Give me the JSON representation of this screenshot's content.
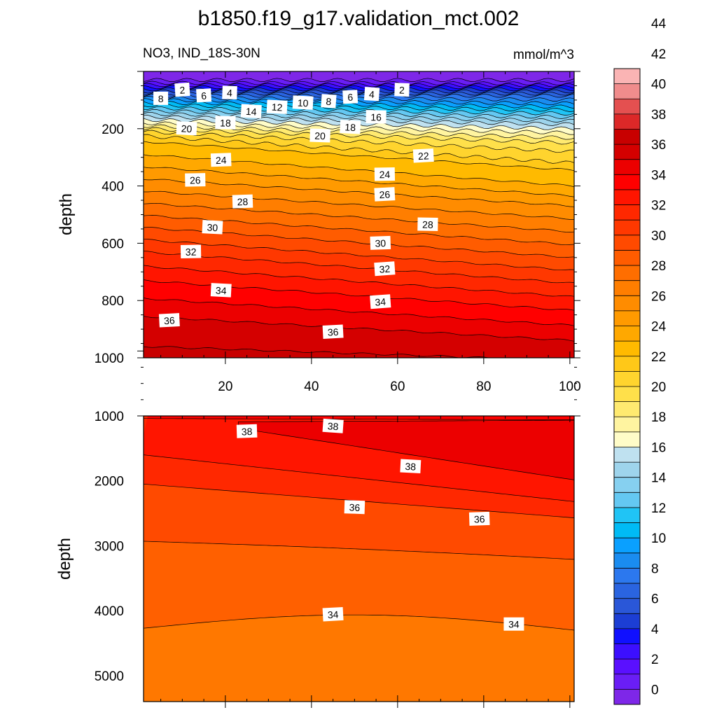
{
  "chart_data": {
    "type": "contour",
    "title": "b1850.f19_g17.validation_mct.002",
    "left_subtitle": "NO3, IND_18S-30N",
    "right_subtitle": "mmol/m^3",
    "panels": [
      {
        "name": "upper",
        "ylabel": "depth",
        "ylim": [
          1000,
          0
        ],
        "xlim": [
          1,
          101
        ],
        "x_tick_labels": [
          "20",
          "40",
          "60",
          "80",
          "100"
        ],
        "x_ticks": [
          20,
          40,
          60,
          80,
          100
        ],
        "y_ticks": [
          200,
          400,
          600,
          800,
          1000
        ],
        "y_tick_labels": [
          "200",
          "400",
          "600",
          "800",
          "1000"
        ],
        "contour_labels": [
          {
            "value": "2",
            "x": 10,
            "y": 65
          },
          {
            "value": "2",
            "x": 61,
            "y": 65
          },
          {
            "value": "8",
            "x": 5,
            "y": 95
          },
          {
            "value": "6",
            "x": 15,
            "y": 85
          },
          {
            "value": "4",
            "x": 21,
            "y": 75
          },
          {
            "value": "6",
            "x": 49,
            "y": 90
          },
          {
            "value": "4",
            "x": 54,
            "y": 80
          },
          {
            "value": "8",
            "x": 44,
            "y": 105
          },
          {
            "value": "10",
            "x": 38,
            "y": 110
          },
          {
            "value": "12",
            "x": 32,
            "y": 125
          },
          {
            "value": "14",
            "x": 26,
            "y": 140
          },
          {
            "value": "16",
            "x": 55,
            "y": 160
          },
          {
            "value": "18",
            "x": 20,
            "y": 180
          },
          {
            "value": "18",
            "x": 49,
            "y": 195
          },
          {
            "value": "20",
            "x": 11,
            "y": 200
          },
          {
            "value": "20",
            "x": 42,
            "y": 225
          },
          {
            "value": "22",
            "x": 66,
            "y": 295
          },
          {
            "value": "24",
            "x": 19,
            "y": 310
          },
          {
            "value": "24",
            "x": 57,
            "y": 360
          },
          {
            "value": "26",
            "x": 13,
            "y": 380
          },
          {
            "value": "26",
            "x": 57,
            "y": 430
          },
          {
            "value": "28",
            "x": 24,
            "y": 455
          },
          {
            "value": "28",
            "x": 67,
            "y": 535
          },
          {
            "value": "30",
            "x": 17,
            "y": 545
          },
          {
            "value": "30",
            "x": 56,
            "y": 600
          },
          {
            "value": "32",
            "x": 12,
            "y": 630
          },
          {
            "value": "32",
            "x": 57,
            "y": 690
          },
          {
            "value": "34",
            "x": 19,
            "y": 765
          },
          {
            "value": "34",
            "x": 56,
            "y": 805
          },
          {
            "value": "36",
            "x": 7,
            "y": 870
          },
          {
            "value": "36",
            "x": 45,
            "y": 910
          }
        ]
      },
      {
        "name": "lower",
        "ylabel": "depth",
        "ylim": [
          5400,
          1000
        ],
        "xlim": [
          1,
          101
        ],
        "y_ticks": [
          1000,
          2000,
          3000,
          4000,
          5000
        ],
        "y_tick_labels": [
          "1000",
          "2000",
          "3000",
          "4000",
          "5000"
        ],
        "contour_labels": [
          {
            "value": "38",
            "x": 25,
            "y": 1240
          },
          {
            "value": "38",
            "x": 45,
            "y": 1160
          },
          {
            "value": "38",
            "x": 63,
            "y": 1780
          },
          {
            "value": "36",
            "x": 50,
            "y": 2410
          },
          {
            "value": "36",
            "x": 79,
            "y": 2590
          },
          {
            "value": "34",
            "x": 45,
            "y": 4060
          },
          {
            "value": "34",
            "x": 87,
            "y": 4210
          }
        ]
      }
    ],
    "colorbar": {
      "levels": [
        "0",
        "2",
        "4",
        "6",
        "8",
        "10",
        "12",
        "14",
        "16",
        "18",
        "20",
        "22",
        "24",
        "26",
        "28",
        "30",
        "32",
        "34",
        "36",
        "38",
        "40",
        "42",
        "44"
      ],
      "colors": [
        "#7e27e8",
        "#6a1ef5",
        "#5a10ff",
        "#3c0fff",
        "#1010ff",
        "#1c3ed4",
        "#2a57d8",
        "#2a64e0",
        "#2c78ee",
        "#1a8cf0",
        "#0aa0ff",
        "#00bbf5",
        "#20c4f5",
        "#64c8f2",
        "#86d0f0",
        "#9ed4ec",
        "#bfe1f0",
        "#fffcc8",
        "#fff4a0",
        "#ffea70",
        "#ffe04a",
        "#ffd42e",
        "#ffc818",
        "#ffba00",
        "#ffa800",
        "#ff9a00",
        "#ff8c00",
        "#ff7e00",
        "#ff6e00",
        "#ff5c00",
        "#ff4a00",
        "#ff3800",
        "#ff2800",
        "#ff1500",
        "#ff0000",
        "#ec0000",
        "#d40000",
        "#c80000",
        "#dc2828",
        "#e45050",
        "#f08c8c",
        "#fab4b4"
      ]
    }
  }
}
